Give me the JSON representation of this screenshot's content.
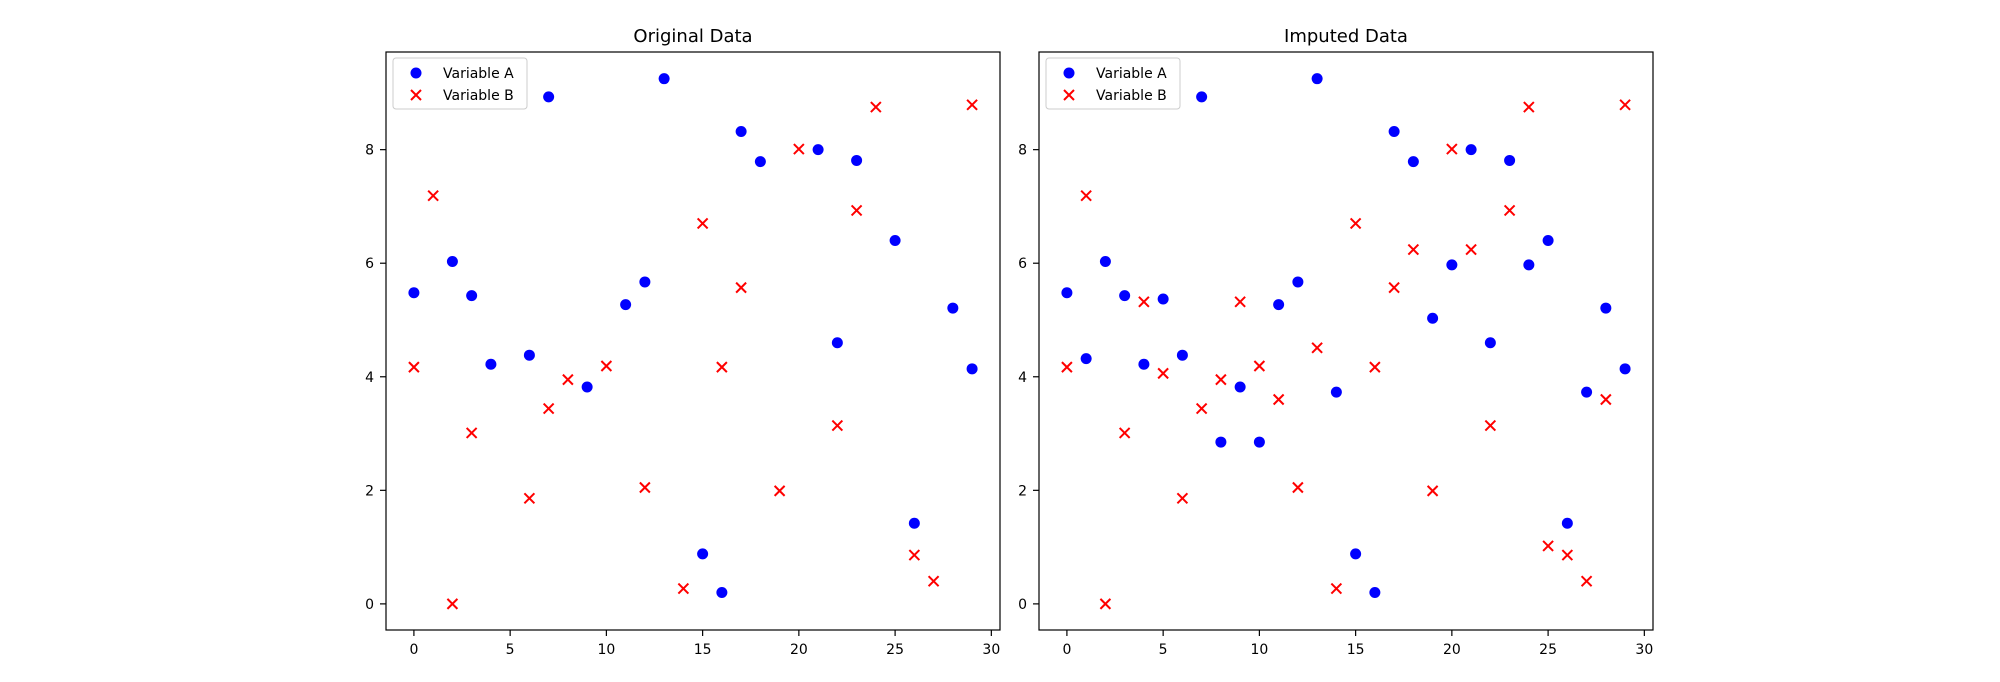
{
  "chart_data": [
    {
      "type": "scatter",
      "title": "Original Data",
      "xlabel": "",
      "ylabel": "",
      "xlim": [
        -1.45,
        30.45
      ],
      "ylim": [
        -0.46,
        9.72
      ],
      "xticks": [
        0,
        5,
        10,
        15,
        20,
        25,
        30
      ],
      "yticks": [
        0,
        2,
        4,
        6,
        8
      ],
      "grid": false,
      "legend": "upper-left",
      "series": [
        {
          "name": "Variable A",
          "marker": "circle",
          "color": "#0000ff",
          "x": [
            0,
            2,
            3,
            4,
            6,
            7,
            9,
            11,
            12,
            13,
            15,
            16,
            17,
            18,
            21,
            22,
            23,
            25,
            26,
            28,
            29
          ],
          "y": [
            5.48,
            6.03,
            5.43,
            4.22,
            4.38,
            8.93,
            3.82,
            5.27,
            5.67,
            9.25,
            0.88,
            0.2,
            8.32,
            7.79,
            8.0,
            4.6,
            7.81,
            6.4,
            1.42,
            5.21,
            4.14
          ]
        },
        {
          "name": "Variable B",
          "marker": "x",
          "color": "#ff0000",
          "x": [
            0,
            1,
            2,
            3,
            6,
            7,
            8,
            10,
            12,
            14,
            15,
            16,
            17,
            19,
            20,
            22,
            23,
            24,
            26,
            27,
            29
          ],
          "y": [
            4.17,
            7.19,
            0.0,
            3.01,
            1.86,
            3.44,
            3.95,
            4.19,
            2.05,
            0.27,
            6.7,
            4.17,
            5.57,
            1.99,
            8.01,
            3.14,
            6.93,
            8.75,
            0.86,
            0.4,
            8.79
          ]
        }
      ]
    },
    {
      "type": "scatter",
      "title": "Imputed Data",
      "xlabel": "",
      "ylabel": "",
      "xlim": [
        -1.45,
        30.45
      ],
      "ylim": [
        -0.46,
        9.72
      ],
      "xticks": [
        0,
        5,
        10,
        15,
        20,
        25,
        30
      ],
      "yticks": [
        0,
        2,
        4,
        6,
        8
      ],
      "grid": false,
      "legend": "upper-left",
      "series": [
        {
          "name": "Variable A",
          "marker": "circle",
          "color": "#0000ff",
          "x": [
            0,
            1,
            2,
            3,
            4,
            5,
            6,
            7,
            8,
            9,
            10,
            11,
            12,
            13,
            14,
            15,
            16,
            17,
            18,
            19,
            20,
            21,
            22,
            23,
            24,
            25,
            26,
            27,
            28,
            29
          ],
          "y": [
            5.48,
            4.32,
            6.03,
            5.43,
            4.22,
            5.37,
            4.38,
            8.93,
            2.85,
            3.82,
            2.85,
            5.27,
            5.67,
            9.25,
            3.73,
            0.88,
            0.2,
            8.32,
            7.79,
            5.03,
            5.97,
            8.0,
            4.6,
            7.81,
            5.97,
            6.4,
            1.42,
            3.73,
            5.21,
            4.14
          ]
        },
        {
          "name": "Variable B",
          "marker": "x",
          "color": "#ff0000",
          "x": [
            0,
            1,
            2,
            3,
            4,
            5,
            6,
            7,
            8,
            9,
            10,
            11,
            12,
            13,
            14,
            15,
            16,
            17,
            18,
            19,
            20,
            21,
            22,
            23,
            24,
            25,
            26,
            27,
            28,
            29
          ],
          "y": [
            4.17,
            7.19,
            0.0,
            3.01,
            5.32,
            4.06,
            1.86,
            3.44,
            3.95,
            5.32,
            4.19,
            3.6,
            2.05,
            4.51,
            0.27,
            6.7,
            4.17,
            5.57,
            6.24,
            1.99,
            8.01,
            6.24,
            3.14,
            6.93,
            8.75,
            1.02,
            0.86,
            0.4,
            3.6,
            8.79
          ]
        }
      ]
    }
  ]
}
